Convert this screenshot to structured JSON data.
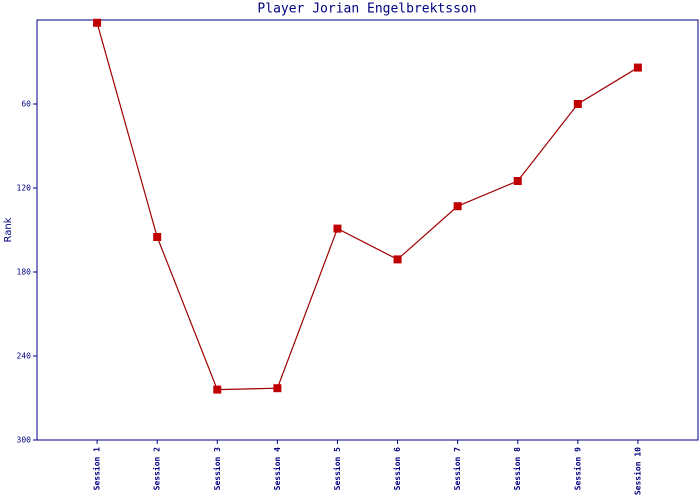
{
  "chart_data": {
    "type": "line",
    "title": "Player Jorian Engelbrektsson",
    "y_label": "Rank",
    "categories": [
      "Session 1",
      "Session 2",
      "Session 3",
      "Session 4",
      "Session 5",
      "Session 6",
      "Session 7",
      "Session 8",
      "Session 9",
      "Session 10"
    ],
    "series": [
      {
        "name": "Rank",
        "color": "#c00000",
        "values": [
          2,
          155,
          264,
          263,
          149,
          171,
          133,
          115,
          60,
          34
        ]
      }
    ],
    "ylim": [
      300,
      0
    ],
    "yticks": [
      60,
      120,
      180,
      240,
      300
    ],
    "frame_color": "#000080",
    "line_color": "#a00000"
  }
}
